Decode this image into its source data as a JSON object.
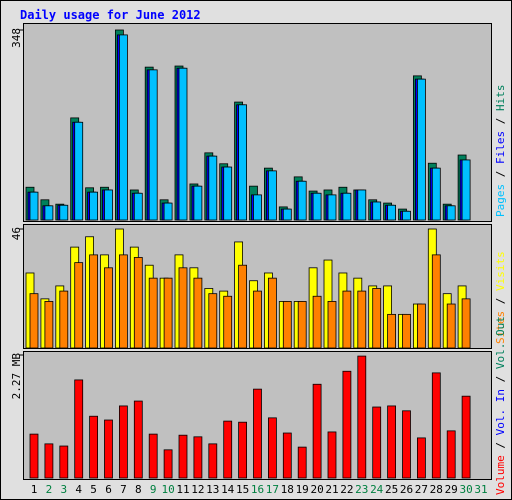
{
  "legend_separator": " / ",
  "chart_data": [
    {
      "type": "bar",
      "title": "Daily usage for June 2012",
      "ylim": [
        0,
        348
      ],
      "yticks": [
        348
      ],
      "series": [
        {
          "name": "Hits",
          "color": "#00805c",
          "values": [
            60,
            37,
            29,
            187,
            59,
            60,
            348,
            55,
            280,
            37,
            282,
            66,
            123,
            103,
            216,
            62,
            95,
            24,
            79,
            53,
            55,
            60,
            55,
            37,
            31,
            20,
            264,
            104,
            29,
            119,
            null
          ]
        },
        {
          "name": "Files",
          "color": "#0000ff",
          "values": [
            51,
            26,
            27,
            179,
            51,
            55,
            339,
            49,
            275,
            31,
            278,
            62,
            117,
            97,
            211,
            46,
            90,
            20,
            71,
            49,
            46,
            49,
            55,
            33,
            27,
            16,
            258,
            95,
            26,
            110,
            null
          ]
        },
        {
          "name": "Pages",
          "color": "#00c0ff",
          "values": [
            51,
            26,
            27,
            179,
            51,
            55,
            339,
            49,
            275,
            31,
            278,
            62,
            117,
            97,
            211,
            46,
            90,
            20,
            71,
            49,
            46,
            49,
            55,
            33,
            27,
            16,
            258,
            95,
            26,
            110,
            null
          ]
        }
      ]
    },
    {
      "type": "bar",
      "ylim": [
        0,
        46
      ],
      "yticks": [
        46
      ],
      "series": [
        {
          "name": "Visits",
          "color": "#ffff00",
          "values": [
            29,
            19,
            24,
            39,
            43,
            36,
            46,
            39,
            32,
            27,
            36,
            31,
            23,
            22,
            41,
            26,
            29,
            18,
            18,
            31,
            34,
            29,
            27,
            24,
            24,
            13,
            17,
            46,
            21,
            24,
            null
          ]
        },
        {
          "name": "Sites",
          "color": "#ff8000",
          "values": [
            21,
            18,
            22,
            33,
            36,
            31,
            36,
            35,
            27,
            27,
            31,
            27,
            21,
            20,
            32,
            22,
            27,
            18,
            18,
            20,
            18,
            22,
            22,
            23,
            13,
            13,
            17,
            36,
            17,
            19,
            null
          ]
        }
      ]
    },
    {
      "type": "bar",
      "ylim": [
        0,
        2.27
      ],
      "yticks": [
        {
          "value": 2.27,
          "label": "2.27 MB"
        }
      ],
      "categories": [
        "1",
        "2",
        "3",
        "4",
        "5",
        "6",
        "7",
        "8",
        "9",
        "10",
        "11",
        "12",
        "13",
        "14",
        "15",
        "16",
        "17",
        "18",
        "19",
        "20",
        "21",
        "22",
        "23",
        "24",
        "25",
        "26",
        "27",
        "28",
        "29",
        "30",
        "31"
      ],
      "category_colors": [
        "#000000",
        "#008040",
        "#008040",
        "#000000",
        "#000000",
        "#000000",
        "#000000",
        "#000000",
        "#008040",
        "#008040",
        "#000000",
        "#000000",
        "#000000",
        "#000000",
        "#000000",
        "#008040",
        "#008040",
        "#000000",
        "#000000",
        "#000000",
        "#000000",
        "#000000",
        "#008040",
        "#008040",
        "#000000",
        "#000000",
        "#000000",
        "#000000",
        "#000000",
        "#008040",
        "#008040"
      ],
      "series": [
        {
          "name": "Volume",
          "color": "#ff0000",
          "values": [
            0.81,
            0.63,
            0.59,
            1.81,
            1.14,
            1.07,
            1.33,
            1.42,
            0.81,
            0.52,
            0.79,
            0.76,
            0.63,
            1.05,
            1.03,
            1.64,
            1.11,
            0.83,
            0.57,
            1.73,
            0.85,
            1.97,
            2.25,
            1.31,
            1.33,
            1.24,
            0.74,
            1.94,
            0.87,
            1.51,
            null
          ]
        }
      ],
      "legend_extra": [
        {
          "name": "Vol. In",
          "color": "#0000ff"
        },
        {
          "name": "Vol. Out",
          "color": "#00805c"
        }
      ]
    }
  ]
}
